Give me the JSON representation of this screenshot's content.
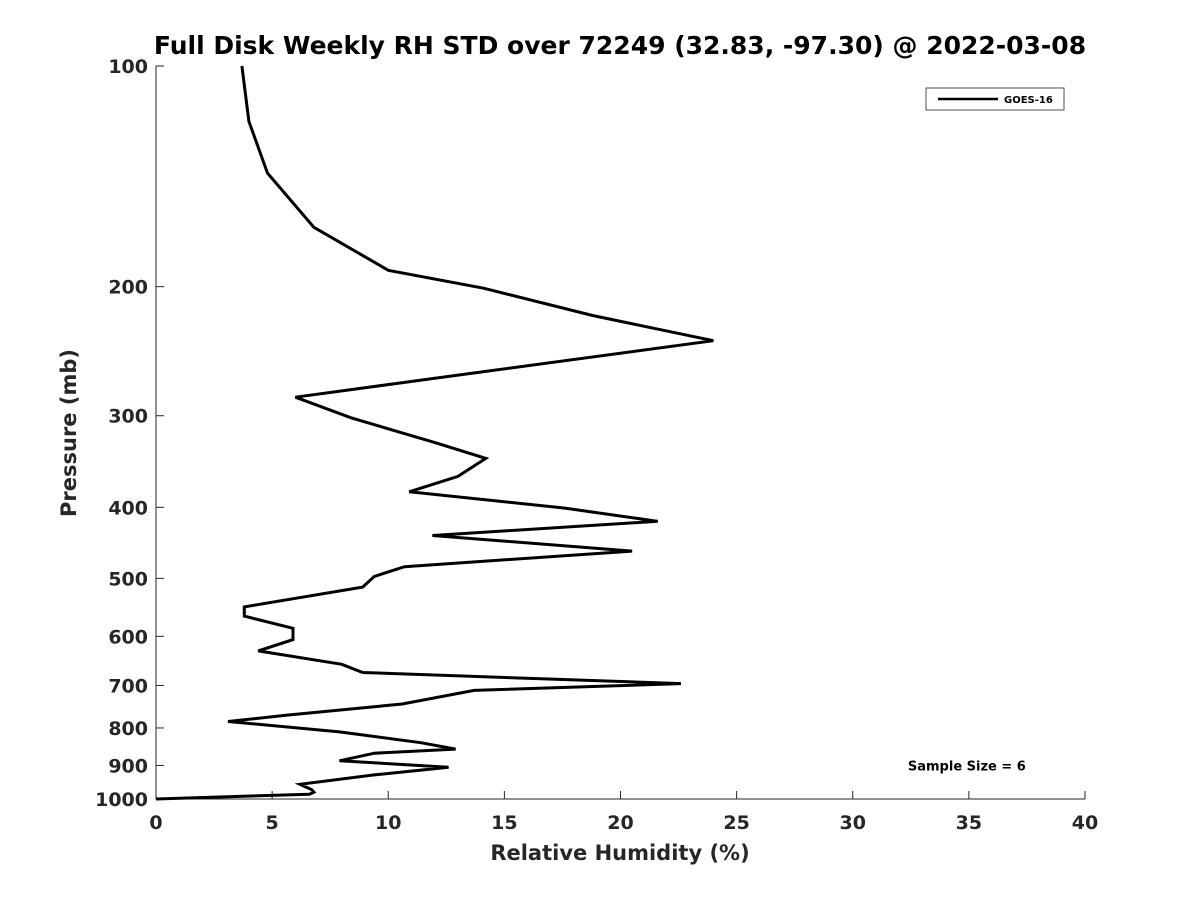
{
  "chart_data": {
    "type": "line",
    "title": "Full Disk Weekly RH STD over 72249 (32.83, -97.30) @ 2022-03-08",
    "xlabel": "Relative Humidity (%)",
    "ylabel": "Pressure (mb)",
    "xlim": [
      0,
      40
    ],
    "ylim": [
      100,
      1000
    ],
    "y_scale": "log",
    "y_reversed": true,
    "grid": false,
    "legend_position": "top-right",
    "x_ticks": [
      0,
      5,
      10,
      15,
      20,
      25,
      30,
      35,
      40
    ],
    "x_tick_labels": [
      "0",
      "5",
      "10",
      "15",
      "20",
      "25",
      "30",
      "35",
      "40"
    ],
    "y_ticks": [
      100,
      200,
      300,
      400,
      500,
      600,
      700,
      800,
      900,
      1000
    ],
    "y_tick_labels": [
      "100",
      "200",
      "300",
      "400",
      "500",
      "600",
      "700",
      "800",
      "900",
      "1000"
    ],
    "series": [
      {
        "name": "GOES-16",
        "color": "#000000",
        "x": [
          3.7,
          4.0,
          4.8,
          6.8,
          10.0,
          14.1,
          18.8,
          24.0,
          13.8,
          6.0,
          8.4,
          12.1,
          14.2,
          13.0,
          10.9,
          17.6,
          21.6,
          11.9,
          20.5,
          10.7,
          9.4,
          8.9,
          3.8,
          3.8,
          5.9,
          5.9,
          4.4,
          8.0,
          8.9,
          22.6,
          13.7,
          10.6,
          5.7,
          3.1,
          7.9,
          11.4,
          12.9,
          9.4,
          7.9,
          12.6,
          9.4,
          6.2,
          6.7,
          6.8,
          6.6,
          0.0
        ],
        "y": [
          100,
          119,
          140,
          166,
          190,
          201,
          219,
          237,
          262,
          283,
          302,
          327,
          343,
          363,
          381,
          401,
          418,
          437,
          459,
          482,
          497,
          514,
          547,
          563,
          585,
          606,
          628,
          655,
          672,
          696,
          711,
          742,
          768,
          784,
          810,
          838,
          855,
          866,
          887,
          905,
          927,
          955,
          971,
          979,
          985,
          1000
        ]
      }
    ],
    "annotations": [
      {
        "text": "Sample Size = 6",
        "x": 35,
        "y": 900
      }
    ]
  }
}
